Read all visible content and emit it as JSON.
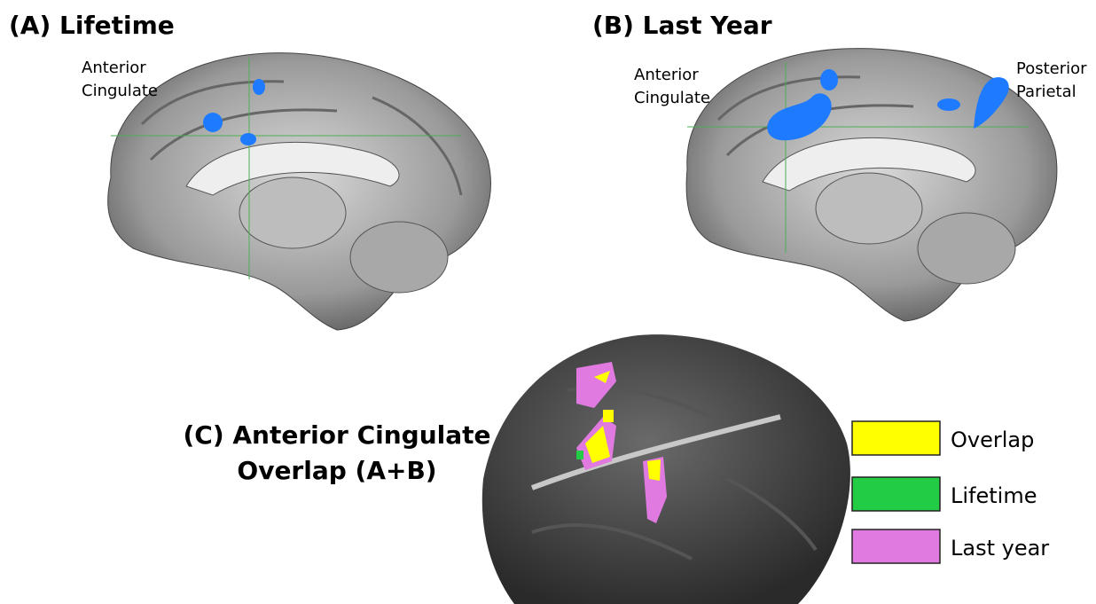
{
  "panels": [
    {
      "title": "(A) Lifetime",
      "labels": [
        [
          "Anterior",
          "Cingulate"
        ]
      ]
    },
    {
      "title": "(B) Last Year",
      "labels": [
        [
          "Anterior",
          "Cingulate"
        ],
        [
          "Posterior",
          "Parietal"
        ]
      ]
    },
    {
      "title": [
        "(C) Anterior Cingulate",
        "Overlap (A+B)"
      ]
    }
  ],
  "legend": [
    {
      "label": "Overlap",
      "color": "#ffff00"
    },
    {
      "label": "Lifetime",
      "color": "#22cc44"
    },
    {
      "label": "Last year",
      "color": "#e07ae0"
    }
  ]
}
